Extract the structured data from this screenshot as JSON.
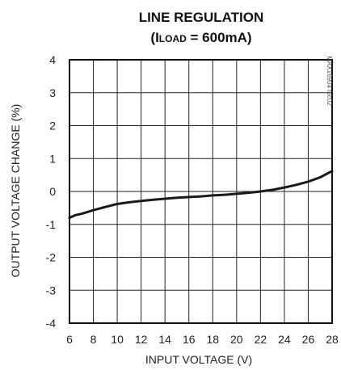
{
  "chart_data": {
    "type": "line",
    "title_line1": "LINE REGULATION",
    "title_line2_prefix": "(I",
    "title_line2_sub": "LOAD",
    "title_line2_suffix": " = 600mA)",
    "xlabel": "INPUT VOLTAGE (V)",
    "ylabel": "OUTPUT VOLTAGE CHANGE (%)",
    "xlim": [
      6,
      28
    ],
    "ylim": [
      -4,
      4
    ],
    "x_ticks": [
      "6",
      "8",
      "10",
      "12",
      "14",
      "16",
      "18",
      "20",
      "22",
      "24",
      "26",
      "28"
    ],
    "y_ticks": [
      "4",
      "3",
      "2",
      "1",
      "0",
      "-1",
      "-2",
      "-3",
      "-4"
    ],
    "grid": true,
    "watermark": "MAX16904 toc02",
    "series": [
      {
        "x": [
          6.0,
          6.5,
          7.0,
          8.0,
          9.0,
          10.0,
          11.0,
          12.0,
          13.0,
          14.0,
          15.0,
          16.0,
          17.0,
          18.0,
          19.0,
          20.0,
          21.0,
          22.0,
          23.0,
          24.0,
          25.0,
          26.0,
          27.0,
          28.0
        ],
        "y": [
          -0.8,
          -0.72,
          -0.68,
          -0.57,
          -0.47,
          -0.38,
          -0.33,
          -0.29,
          -0.25,
          -0.22,
          -0.19,
          -0.17,
          -0.15,
          -0.12,
          -0.1,
          -0.07,
          -0.04,
          0.0,
          0.05,
          0.12,
          0.2,
          0.3,
          0.43,
          0.62
        ]
      }
    ]
  }
}
